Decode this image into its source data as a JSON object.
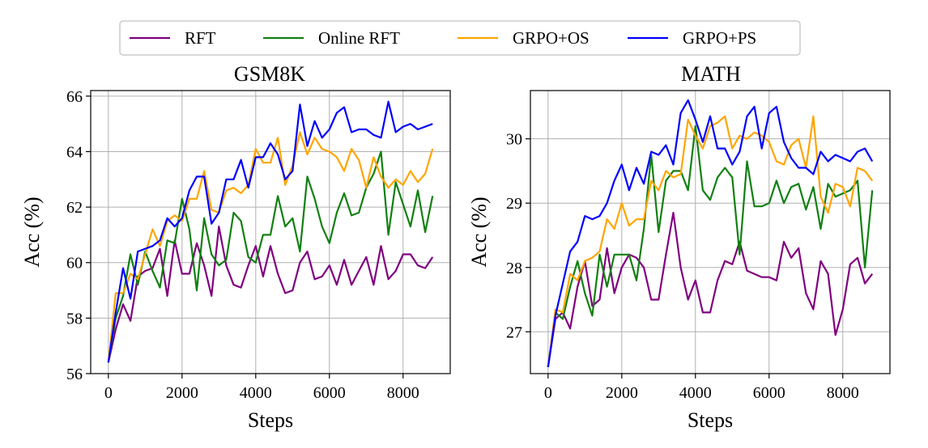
{
  "legend": {
    "placement": "top-center",
    "entries": [
      {
        "label": "RFT",
        "color": "#800080"
      },
      {
        "label": "Online RFT",
        "color": "#118011"
      },
      {
        "label": "GRPO+OS",
        "color": "#FFA500"
      },
      {
        "label": "GRPO+PS",
        "color": "#0000FF"
      }
    ]
  },
  "chart_data": [
    {
      "type": "line",
      "title": "GSM8K",
      "xlabel": "Steps",
      "ylabel": "Acc (%)",
      "xlim": [
        -480,
        9280
      ],
      "ylim": [
        56,
        66.2
      ],
      "xticks": [
        0,
        2000,
        4000,
        6000,
        8000
      ],
      "yticks": [
        56,
        58,
        60,
        62,
        64,
        66
      ],
      "grid": true,
      "series": [
        {
          "name": "RFT",
          "color": "#800080",
          "x": [
            0,
            200,
            400,
            600,
            800,
            1000,
            1200,
            1400,
            1600,
            1800,
            2000,
            2200,
            2400,
            2600,
            2800,
            3000,
            3200,
            3400,
            3600,
            3800,
            4000,
            4200,
            4400,
            4600,
            4800,
            5000,
            5200,
            5400,
            5600,
            5800,
            6000,
            6200,
            6400,
            6600,
            6800,
            7000,
            7200,
            7400,
            7600,
            7800,
            8000,
            8200,
            8400,
            8600,
            8800
          ],
          "y": [
            56.4,
            57.6,
            58.5,
            57.9,
            59.5,
            59.7,
            59.8,
            60.5,
            58.8,
            60.8,
            59.6,
            59.6,
            60.7,
            59.9,
            58.8,
            61.3,
            59.9,
            59.2,
            59.1,
            59.9,
            60.6,
            59.5,
            60.6,
            59.6,
            58.9,
            59.0,
            60.0,
            60.4,
            59.4,
            59.5,
            59.9,
            59.2,
            60.1,
            59.2,
            59.7,
            60.2,
            59.2,
            60.6,
            59.4,
            59.7,
            60.3,
            60.3,
            59.9,
            59.8,
            60.2
          ]
        },
        {
          "name": "Online RFT",
          "color": "#118011",
          "x": [
            0,
            200,
            400,
            600,
            800,
            1000,
            1200,
            1400,
            1600,
            1800,
            2000,
            2200,
            2400,
            2600,
            2800,
            3000,
            3200,
            3400,
            3600,
            3800,
            4000,
            4200,
            4400,
            4600,
            4800,
            5000,
            5200,
            5400,
            5600,
            5800,
            6000,
            6200,
            6400,
            6600,
            6800,
            7000,
            7200,
            7400,
            7600,
            7800,
            8000,
            8200,
            8400,
            8600,
            8800
          ],
          "y": [
            56.4,
            58.0,
            58.8,
            60.3,
            59.2,
            60.4,
            59.7,
            59.1,
            60.8,
            60.7,
            62.3,
            61.2,
            59.0,
            61.6,
            60.3,
            59.9,
            60.1,
            61.8,
            61.5,
            60.2,
            60.0,
            61.0,
            61.0,
            62.4,
            61.3,
            61.6,
            60.4,
            63.1,
            62.3,
            61.3,
            60.7,
            61.8,
            62.5,
            61.7,
            61.8,
            62.7,
            63.2,
            64.0,
            61.0,
            62.9,
            62.1,
            61.3,
            62.6,
            61.1,
            62.4
          ]
        },
        {
          "name": "GRPO+OS",
          "color": "#FFA500",
          "x": [
            0,
            200,
            400,
            600,
            800,
            1000,
            1200,
            1400,
            1600,
            1800,
            2000,
            2200,
            2400,
            2600,
            2800,
            3000,
            3200,
            3400,
            3600,
            3800,
            4000,
            4200,
            4400,
            4600,
            4800,
            5000,
            5200,
            5400,
            5600,
            5800,
            6000,
            6200,
            6400,
            6600,
            6800,
            7000,
            7200,
            7400,
            7600,
            7800,
            8000,
            8200,
            8400,
            8600,
            8800
          ],
          "y": [
            56.4,
            58.9,
            58.9,
            59.6,
            59.4,
            60.3,
            61.2,
            60.6,
            61.5,
            61.7,
            61.5,
            62.3,
            62.3,
            63.3,
            61.9,
            61.8,
            62.6,
            62.7,
            62.5,
            62.8,
            64.1,
            63.6,
            63.6,
            64.5,
            62.8,
            63.5,
            64.7,
            63.9,
            64.5,
            64.1,
            64.0,
            63.8,
            63.3,
            64.1,
            63.7,
            62.7,
            63.8,
            63.1,
            62.7,
            63.0,
            62.8,
            63.3,
            62.9,
            63.2,
            64.1
          ]
        },
        {
          "name": "GRPO+PS",
          "color": "#0000FF",
          "x": [
            0,
            200,
            400,
            600,
            800,
            1000,
            1200,
            1400,
            1600,
            1800,
            2000,
            2200,
            2400,
            2600,
            2800,
            3000,
            3200,
            3400,
            3600,
            3800,
            4000,
            4200,
            4400,
            4600,
            4800,
            5000,
            5200,
            5400,
            5600,
            5800,
            6000,
            6200,
            6400,
            6600,
            6800,
            7000,
            7200,
            7400,
            7600,
            7800,
            8000,
            8200,
            8400,
            8600,
            8800
          ],
          "y": [
            56.4,
            58.2,
            59.8,
            58.7,
            60.4,
            60.5,
            60.6,
            60.8,
            61.6,
            61.3,
            61.6,
            62.6,
            63.1,
            63.1,
            61.4,
            61.8,
            63.0,
            63.0,
            63.7,
            62.7,
            63.8,
            63.8,
            64.3,
            63.9,
            63.0,
            63.3,
            65.7,
            64.2,
            65.1,
            64.5,
            64.8,
            65.4,
            65.6,
            64.7,
            64.8,
            64.8,
            64.6,
            64.5,
            65.8,
            64.7,
            64.9,
            65.0,
            64.8,
            64.9,
            65.0
          ]
        }
      ]
    },
    {
      "type": "line",
      "title": "MATH",
      "xlabel": "Steps",
      "ylabel": "Acc (%)",
      "xlim": [
        -480,
        9280
      ],
      "ylim": [
        26.35,
        30.75
      ],
      "xticks": [
        0,
        2000,
        4000,
        6000,
        8000
      ],
      "yticks": [
        27,
        28,
        29,
        30
      ],
      "grid": true,
      "series": [
        {
          "name": "RFT",
          "color": "#800080",
          "x": [
            0,
            200,
            400,
            600,
            800,
            1000,
            1200,
            1400,
            1600,
            1800,
            2000,
            2200,
            2400,
            2600,
            2800,
            3000,
            3200,
            3400,
            3600,
            3800,
            4000,
            4200,
            4400,
            4600,
            4800,
            5000,
            5200,
            5400,
            5600,
            5800,
            6000,
            6200,
            6400,
            6600,
            6800,
            7000,
            7200,
            7400,
            7600,
            7800,
            8000,
            8200,
            8400,
            8600,
            8800
          ],
          "y": [
            26.45,
            27.2,
            27.3,
            27.05,
            27.7,
            28.1,
            27.4,
            27.5,
            28.3,
            27.6,
            28.0,
            28.2,
            28.15,
            28.0,
            27.5,
            27.5,
            28.2,
            28.85,
            28.0,
            27.5,
            27.8,
            27.3,
            27.3,
            27.8,
            28.1,
            28.05,
            28.4,
            27.95,
            27.9,
            27.85,
            27.85,
            27.8,
            28.4,
            28.15,
            28.3,
            27.6,
            27.35,
            28.1,
            27.9,
            26.95,
            27.35,
            28.05,
            28.15,
            27.75,
            27.9
          ]
        },
        {
          "name": "Online RFT",
          "color": "#118011",
          "x": [
            0,
            200,
            400,
            600,
            800,
            1000,
            1200,
            1400,
            1600,
            1800,
            2000,
            2200,
            2400,
            2600,
            2800,
            3000,
            3200,
            3400,
            3600,
            3800,
            4000,
            4200,
            4400,
            4600,
            4800,
            5000,
            5200,
            5400,
            5600,
            5800,
            6000,
            6200,
            6400,
            6600,
            6800,
            7000,
            7200,
            7400,
            7600,
            7800,
            8000,
            8200,
            8400,
            8600,
            8800
          ],
          "y": [
            26.45,
            27.3,
            27.2,
            27.7,
            28.1,
            27.6,
            27.25,
            28.2,
            27.7,
            28.2,
            28.2,
            28.2,
            27.8,
            28.6,
            29.75,
            28.55,
            29.35,
            29.5,
            29.5,
            29.2,
            30.2,
            29.2,
            29.05,
            29.4,
            29.55,
            29.4,
            28.2,
            29.65,
            28.95,
            28.95,
            29.0,
            29.35,
            29.0,
            29.25,
            29.3,
            28.9,
            29.25,
            28.6,
            29.3,
            29.1,
            29.15,
            29.2,
            29.35,
            28.0,
            29.2
          ]
        },
        {
          "name": "GRPO+OS",
          "color": "#FFA500",
          "x": [
            0,
            200,
            400,
            600,
            800,
            1000,
            1200,
            1400,
            1600,
            1800,
            2000,
            2200,
            2400,
            2600,
            2800,
            3000,
            3200,
            3400,
            3600,
            3800,
            4000,
            4200,
            4400,
            4600,
            4800,
            5000,
            5200,
            5400,
            5600,
            5800,
            6000,
            6200,
            6400,
            6600,
            6800,
            7000,
            7200,
            7400,
            7600,
            7800,
            8000,
            8200,
            8400,
            8600,
            8800
          ],
          "y": [
            26.45,
            27.35,
            27.3,
            27.9,
            27.8,
            28.1,
            28.15,
            28.25,
            28.75,
            28.6,
            29.0,
            28.65,
            28.75,
            28.75,
            29.35,
            29.2,
            29.5,
            29.4,
            29.45,
            30.3,
            30.05,
            29.85,
            30.2,
            30.25,
            30.35,
            29.85,
            30.05,
            30.0,
            30.1,
            30.05,
            29.95,
            29.65,
            29.6,
            29.9,
            30.0,
            29.55,
            30.35,
            29.1,
            28.85,
            29.3,
            29.25,
            28.95,
            29.55,
            29.5,
            29.35
          ]
        },
        {
          "name": "GRPO+PS",
          "color": "#0000FF",
          "x": [
            0,
            200,
            400,
            600,
            800,
            1000,
            1200,
            1400,
            1600,
            1800,
            2000,
            2200,
            2400,
            2600,
            2800,
            3000,
            3200,
            3400,
            3600,
            3800,
            4000,
            4200,
            4400,
            4600,
            4800,
            5000,
            5200,
            5400,
            5600,
            5800,
            6000,
            6200,
            6400,
            6600,
            6800,
            7000,
            7200,
            7400,
            7600,
            7800,
            8000,
            8200,
            8400,
            8600,
            8800
          ],
          "y": [
            26.45,
            27.25,
            27.75,
            28.25,
            28.4,
            28.8,
            28.75,
            28.8,
            29.0,
            29.35,
            29.6,
            29.2,
            29.55,
            29.3,
            29.8,
            29.75,
            29.9,
            29.6,
            30.4,
            30.6,
            30.3,
            29.95,
            30.35,
            29.85,
            29.85,
            29.6,
            29.8,
            30.35,
            30.5,
            29.85,
            30.4,
            30.5,
            29.95,
            29.7,
            29.55,
            29.55,
            29.45,
            29.8,
            29.65,
            29.75,
            29.7,
            29.65,
            29.8,
            29.85,
            29.65
          ]
        }
      ]
    }
  ]
}
